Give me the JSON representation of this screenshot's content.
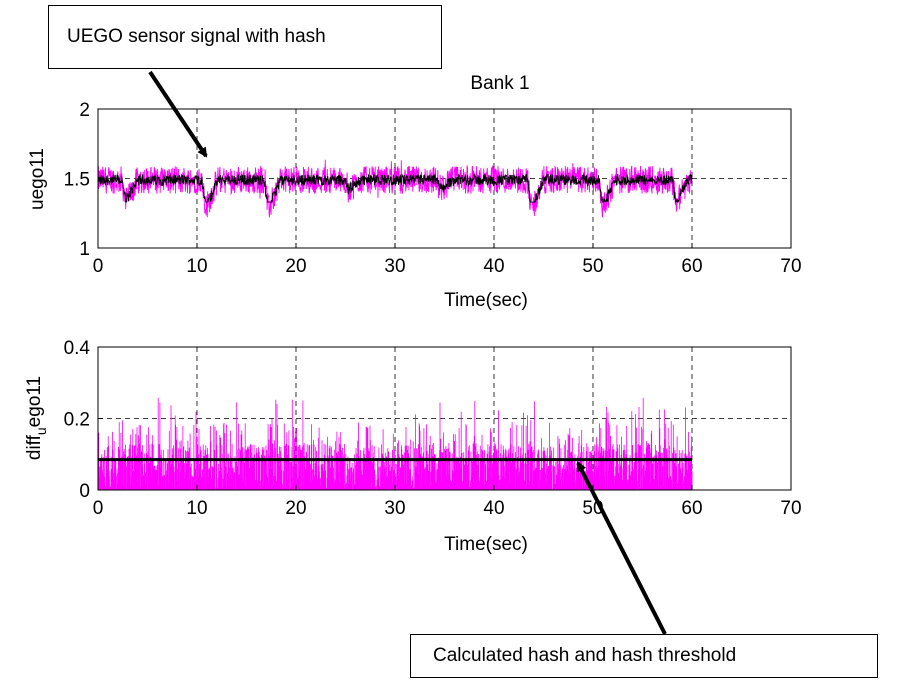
{
  "annotations": {
    "top": "UEGO sensor signal with hash",
    "bottom": "Calculated hash and hash threshold"
  },
  "colors": {
    "signal": "#ff00ff",
    "filtered": "#000000",
    "threshold": "#000000",
    "grid": "#000000"
  },
  "chart_data": [
    {
      "type": "line",
      "title": "Bank 1",
      "xlabel": "Time(sec)",
      "ylabel": "uego11",
      "xlim": [
        0,
        70
      ],
      "ylim": [
        1,
        2
      ],
      "xticks": [
        0,
        10,
        20,
        30,
        40,
        50,
        60,
        70
      ],
      "yticks": [
        1,
        1.5,
        2
      ],
      "ytick_labels": [
        "1",
        "1.5",
        "2"
      ],
      "grid": true,
      "series": [
        {
          "color": "#ff00ff",
          "x": [
            0,
            60
          ],
          "mean": 1.49,
          "band": [
            1.22,
            1.7
          ]
        },
        {
          "color": "#000000",
          "x": [
            0,
            60
          ],
          "mean": 1.49,
          "band": [
            1.33,
            1.56
          ]
        }
      ],
      "dips": [
        {
          "x": 2.8,
          "min": 1.27
        },
        {
          "x": 10.9,
          "min": 1.22
        },
        {
          "x": 17.2,
          "min": 1.2
        },
        {
          "x": 25.3,
          "min": 1.35
        },
        {
          "x": 34.6,
          "min": 1.35
        },
        {
          "x": 43.8,
          "min": 1.2
        },
        {
          "x": 51.0,
          "min": 1.22
        },
        {
          "x": 58.4,
          "min": 1.25
        }
      ]
    },
    {
      "type": "line",
      "title": "",
      "xlabel": "Time(sec)",
      "ylabel": "diff_uego11",
      "xlim": [
        0,
        70
      ],
      "ylim": [
        0,
        0.4
      ],
      "xticks": [
        0,
        10,
        20,
        30,
        40,
        50,
        60,
        70
      ],
      "yticks": [
        0,
        0.2,
        0.4
      ],
      "ytick_labels": [
        "0",
        "0.2",
        "0.4"
      ],
      "grid": true,
      "series": [
        {
          "color": "#ff00ff",
          "x": [
            0,
            60
          ],
          "range": [
            0,
            0.26
          ]
        },
        {
          "color": "#000000",
          "x": [
            0,
            60
          ],
          "y": [
            0.085,
            0.085
          ]
        }
      ]
    }
  ]
}
